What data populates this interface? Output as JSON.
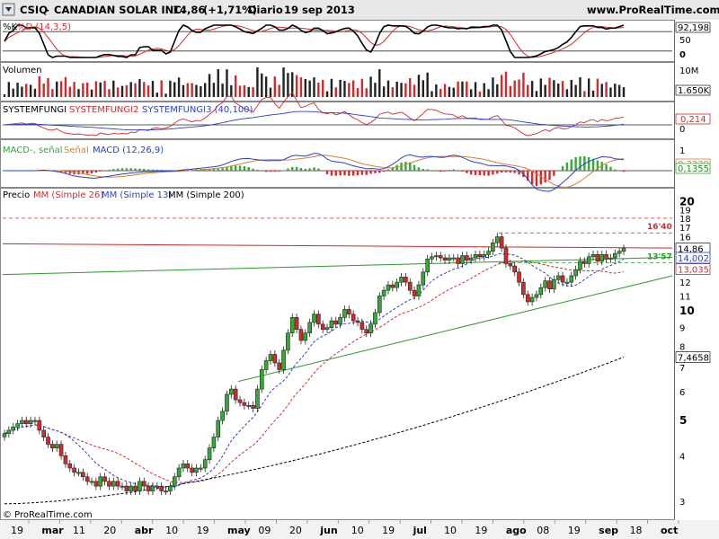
{
  "header": {
    "symbol": "CSIQ",
    "name": "CANADIAN SOLAR INC.",
    "last": "14,86",
    "change": "(+1,71%)",
    "period": "Diario",
    "date": "19 sep 2013",
    "site": "www.ProRealTime.com"
  },
  "footer": {
    "copyright": "© ProRealTime.com"
  },
  "colors": {
    "up": "#33aa33",
    "down": "#d82828",
    "sma26": "#d22a2a",
    "sma13": "#2a3fd4",
    "sma200": "#000000",
    "stoch_k": "#000000",
    "stoch_d": "#d22a2a",
    "fungi1": "#000000",
    "fungi2": "#d22a2a",
    "fungi3": "#2a3fd4",
    "macd_line": "#2a3fd4",
    "macd_signal": "#d2803a",
    "macd_hist": "#33aa33"
  },
  "x_labels": [
    "19",
    "mar",
    "11",
    "20",
    "abr",
    "10",
    "19",
    "may",
    "09",
    "20",
    "jun",
    "10",
    "19",
    "jul",
    "10",
    "19",
    "ago",
    "08",
    "19",
    "sep",
    "18",
    "oct"
  ],
  "panels": {
    "stoch": {
      "title": "%K %D (14,3,5)",
      "title_k": "%K",
      "title_d": "%D (14,3,5)",
      "value": "92,198",
      "ticks": [
        "50",
        "0"
      ]
    },
    "volume": {
      "title": "Volumen",
      "value": "1.650K",
      "ticks": [
        "10M"
      ]
    },
    "fungi": {
      "t1": "SYSTEMFUNGI",
      "t2": "SYSTEMFUNGI2",
      "t3": "SYSTEMFUNGI3 (40,100)",
      "value": "0,214",
      "value2": "0"
    },
    "macd": {
      "t1": "MACD-, señal",
      "t2": "Señal",
      "t3": "MACD (12,26,9)",
      "tick": "1",
      "value": "0,3339",
      "value2": "0,1355"
    },
    "price": {
      "title_prefix": "Precio",
      "mm26": "MM (Simple 26)",
      "mm13": "MM (Simple 13)",
      "mm200": "MM (Simple 200)",
      "last_label": "14,86",
      "sma13_label": "14,002",
      "sma26_label": "13,035",
      "sma200_label": "7,4658",
      "level_high_label": "16'40",
      "level_low_label": "13'57",
      "ticks": [
        "20",
        "19",
        "18",
        "17",
        "16",
        "15",
        "13",
        "12",
        "11",
        "10",
        "9",
        "8",
        "7",
        "6",
        "5",
        "4",
        "3"
      ]
    }
  },
  "chart_data": {
    "type": "candlestick",
    "ticker": "CSIQ",
    "x_labels": [
      "19",
      "mar",
      "11",
      "20",
      "abr",
      "10",
      "19",
      "may",
      "09",
      "20",
      "jun",
      "10",
      "19",
      "jul",
      "10",
      "19",
      "ago",
      "08",
      "19",
      "sep",
      "18",
      "oct"
    ],
    "closes": [
      4.6,
      4.7,
      4.8,
      4.9,
      5.0,
      4.9,
      5.0,
      5.0,
      4.7,
      4.5,
      4.3,
      4.2,
      4.3,
      4.0,
      3.8,
      3.7,
      3.6,
      3.6,
      3.5,
      3.4,
      3.4,
      3.3,
      3.5,
      3.4,
      3.3,
      3.4,
      3.3,
      3.3,
      3.2,
      3.3,
      3.2,
      3.4,
      3.3,
      3.2,
      3.3,
      3.3,
      3.2,
      3.2,
      3.3,
      3.5,
      3.7,
      3.8,
      3.7,
      3.6,
      3.7,
      3.7,
      3.9,
      4.2,
      4.5,
      5.0,
      5.3,
      5.9,
      6.1,
      5.7,
      5.6,
      5.5,
      5.5,
      5.4,
      6.1,
      6.9,
      7.3,
      7.6,
      7.2,
      6.9,
      7.8,
      8.7,
      9.6,
      8.9,
      8.3,
      8.7,
      9.3,
      9.8,
      9.2,
      8.9,
      9.0,
      9.4,
      9.2,
      9.6,
      10.1,
      9.8,
      9.4,
      9.3,
      8.9,
      8.7,
      9.2,
      9.9,
      11.0,
      11.4,
      11.8,
      11.6,
      12.0,
      12.4,
      12.0,
      11.4,
      11.0,
      11.8,
      12.8,
      13.9,
      14.1,
      14.2,
      14.0,
      13.8,
      14.0,
      14.0,
      13.5,
      14.2,
      13.8,
      14.0,
      14.3,
      14.1,
      14.3,
      14.6,
      15.4,
      16.0,
      14.9,
      13.5,
      13.3,
      12.8,
      12.0,
      11.1,
      10.6,
      10.9,
      11.1,
      11.6,
      12.1,
      11.5,
      12.2,
      12.5,
      12.0,
      12.0,
      12.5,
      13.0,
      13.7,
      13.5,
      14.1,
      14.3,
      13.7,
      14.3,
      13.9,
      14.0,
      14.4,
      14.6,
      14.86
    ],
    "levels": [
      {
        "label": "16'40",
        "value": 16.4
      },
      {
        "label": "13'57",
        "value": 13.57
      }
    ],
    "sma200_last": 7.4658,
    "sma13_last": 14.002,
    "sma26_last": 13.035,
    "last": 14.86,
    "ylim": [
      2.8,
      20.5
    ],
    "y_scale": "log"
  }
}
